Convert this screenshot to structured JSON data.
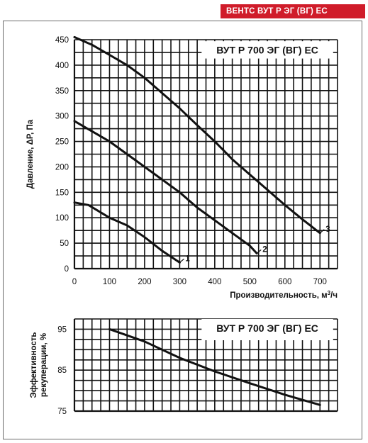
{
  "header": {
    "badge": "ВЕНТС ВУТ Р ЭГ (ВГ) ЕС"
  },
  "chart_data": [
    {
      "type": "line",
      "title": "ВУТ Р 700 ЭГ (ВГ) ЕС",
      "xlabel": "Производительность, м",
      "xlabel_sup": "3",
      "xlabel_suffix": "/ч",
      "ylabel": "Давление, ΔP, Па",
      "xlim": [
        0,
        750
      ],
      "ylim": [
        0,
        450
      ],
      "xticks": [
        0,
        100,
        200,
        300,
        400,
        500,
        600,
        700
      ],
      "yticks": [
        0,
        50,
        100,
        150,
        200,
        250,
        300,
        350,
        400,
        450
      ],
      "grid": true,
      "series": [
        {
          "name": "1",
          "x": [
            0,
            40,
            100,
            150,
            200,
            250,
            300
          ],
          "y": [
            130,
            125,
            100,
            85,
            62,
            35,
            12
          ]
        },
        {
          "name": "2",
          "x": [
            0,
            50,
            100,
            150,
            200,
            250,
            300,
            350,
            400,
            450,
            500,
            520
          ],
          "y": [
            290,
            270,
            250,
            225,
            200,
            175,
            150,
            120,
            95,
            70,
            45,
            30
          ]
        },
        {
          "name": "3",
          "x": [
            0,
            50,
            100,
            150,
            200,
            250,
            300,
            350,
            400,
            450,
            500,
            550,
            600,
            650,
            700
          ],
          "y": [
            455,
            440,
            420,
            400,
            375,
            345,
            315,
            282,
            250,
            215,
            185,
            155,
            125,
            97,
            70
          ]
        }
      ]
    },
    {
      "type": "line",
      "title": "ВУТ Р 700 ЭГ (ВГ) ЕС",
      "xlabel": "",
      "ylabel_line1": "Эффективность",
      "ylabel_line2": "рекуперации, %",
      "xlim": [
        0,
        750
      ],
      "ylim": [
        75,
        97.5
      ],
      "yticks": [
        75,
        85,
        95
      ],
      "grid": true,
      "series": [
        {
          "x": [
            100,
            200,
            300,
            400,
            500,
            600,
            700
          ],
          "y": [
            95,
            92,
            88,
            84.7,
            81.8,
            79,
            76.5
          ]
        }
      ]
    }
  ]
}
